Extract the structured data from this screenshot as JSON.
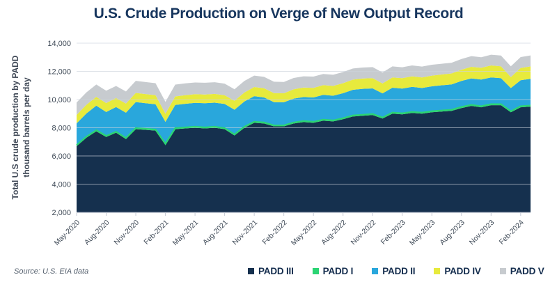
{
  "title": "U.S. Crude Production on Verge of New Output Record",
  "source_note": "Source: U.S. EIA data",
  "y_axis": {
    "title_line1": "Total U.S crude production by PADD",
    "title_line2": "thousand barrels per day",
    "tick_labels": [
      "14,000",
      "12,000",
      "10,000",
      "8,000",
      "6,000",
      "4,000",
      "2,000"
    ]
  },
  "x_axis": {
    "tick_labels": [
      "May-2020",
      "Aug-2020",
      "Nov-2020",
      "Feb-2021",
      "May-2021",
      "Aug-2021",
      "Nov-2021",
      "Feb-2022",
      "May-2022",
      "Aug-2022",
      "Nov-2022",
      "Feb-2023",
      "May-2023",
      "Aug-2023",
      "Nov-2023",
      "Feb-2024"
    ]
  },
  "legend": [
    {
      "label": "PADD III",
      "color": "#15304e"
    },
    {
      "label": "PADD I",
      "color": "#2bd473"
    },
    {
      "label": "PADD II",
      "color": "#29a7dc"
    },
    {
      "label": "PADD IV",
      "color": "#e7ea3d"
    },
    {
      "label": "PADD V",
      "color": "#c7cbcf"
    }
  ],
  "colors": {
    "title": "#17365e",
    "axis_text": "#3f4a57",
    "gridline": "#ccd3dc",
    "axis_line": "#c6cbd6",
    "background": "#ffffff"
  },
  "chart_data": {
    "type": "area",
    "stacked": true,
    "title": "U.S. Crude Production on Verge of New Output Record",
    "ylabel": "Total U.S crude production by PADD, thousand barrels per day",
    "xlabel": "",
    "ylim": [
      2000,
      14000
    ],
    "ytick_step": 2000,
    "grid": true,
    "legend_position": "bottom",
    "x": [
      "May-2020",
      "Jun-2020",
      "Jul-2020",
      "Aug-2020",
      "Sep-2020",
      "Oct-2020",
      "Nov-2020",
      "Dec-2020",
      "Jan-2021",
      "Feb-2021",
      "Mar-2021",
      "Apr-2021",
      "May-2021",
      "Jun-2021",
      "Jul-2021",
      "Aug-2021",
      "Sep-2021",
      "Oct-2021",
      "Nov-2021",
      "Dec-2021",
      "Jan-2022",
      "Feb-2022",
      "Mar-2022",
      "Apr-2022",
      "May-2022",
      "Jun-2022",
      "Jul-2022",
      "Aug-2022",
      "Sep-2022",
      "Oct-2022",
      "Nov-2022",
      "Dec-2022",
      "Jan-2023",
      "Feb-2023",
      "Mar-2023",
      "Apr-2023",
      "May-2023",
      "Jun-2023",
      "Jul-2023",
      "Aug-2023",
      "Sep-2023",
      "Oct-2023",
      "Nov-2023",
      "Dec-2023",
      "Jan-2024",
      "Feb-2024",
      "Mar-2024"
    ],
    "series": [
      {
        "name": "PADD III",
        "color": "#15304e",
        "values": [
          6700,
          7300,
          7750,
          7350,
          7650,
          7200,
          7900,
          7850,
          7800,
          6800,
          7900,
          7950,
          8000,
          7950,
          8000,
          7900,
          7450,
          8000,
          8350,
          8300,
          8100,
          8100,
          8300,
          8400,
          8350,
          8500,
          8450,
          8600,
          8800,
          8850,
          8900,
          8650,
          9000,
          8950,
          9050,
          9000,
          9100,
          9150,
          9200,
          9400,
          9550,
          9450,
          9600,
          9600,
          9100,
          9450,
          9500
        ]
      },
      {
        "name": "PADD I",
        "color": "#2bd473",
        "values": [
          60,
          65,
          65,
          65,
          65,
          65,
          70,
          70,
          70,
          60,
          70,
          70,
          70,
          70,
          70,
          70,
          70,
          70,
          70,
          70,
          65,
          65,
          70,
          70,
          70,
          70,
          70,
          70,
          70,
          70,
          70,
          70,
          70,
          70,
          70,
          70,
          70,
          70,
          70,
          70,
          70,
          70,
          70,
          70,
          65,
          70,
          70
        ]
      },
      {
        "name": "PADD II",
        "color": "#29a7dc",
        "values": [
          1550,
          1650,
          1750,
          1700,
          1750,
          1800,
          1850,
          1820,
          1800,
          1560,
          1650,
          1680,
          1700,
          1720,
          1710,
          1720,
          1760,
          1790,
          1820,
          1780,
          1650,
          1640,
          1700,
          1710,
          1730,
          1760,
          1750,
          1780,
          1820,
          1840,
          1820,
          1720,
          1770,
          1760,
          1780,
          1750,
          1770,
          1790,
          1800,
          1850,
          1880,
          1900,
          1900,
          1850,
          1650,
          1850,
          1900
        ]
      },
      {
        "name": "PADD IV",
        "color": "#e7ea3d",
        "values": [
          600,
          620,
          630,
          640,
          640,
          650,
          650,
          650,
          640,
          580,
          600,
          610,
          610,
          620,
          620,
          620,
          630,
          640,
          650,
          650,
          640,
          640,
          660,
          670,
          680,
          690,
          700,
          710,
          720,
          730,
          730,
          700,
          730,
          740,
          750,
          750,
          760,
          770,
          780,
          800,
          820,
          830,
          850,
          840,
          780,
          870,
          880
        ]
      },
      {
        "name": "PADD V",
        "color": "#c7cbcf",
        "values": [
          880,
          880,
          870,
          870,
          860,
          860,
          860,
          850,
          850,
          840,
          840,
          840,
          830,
          830,
          830,
          820,
          820,
          820,
          810,
          810,
          810,
          800,
          800,
          800,
          800,
          790,
          790,
          790,
          790,
          780,
          780,
          780,
          780,
          770,
          770,
          770,
          770,
          760,
          760,
          760,
          760,
          750,
          760,
          760,
          760,
          770,
          780
        ]
      }
    ]
  }
}
